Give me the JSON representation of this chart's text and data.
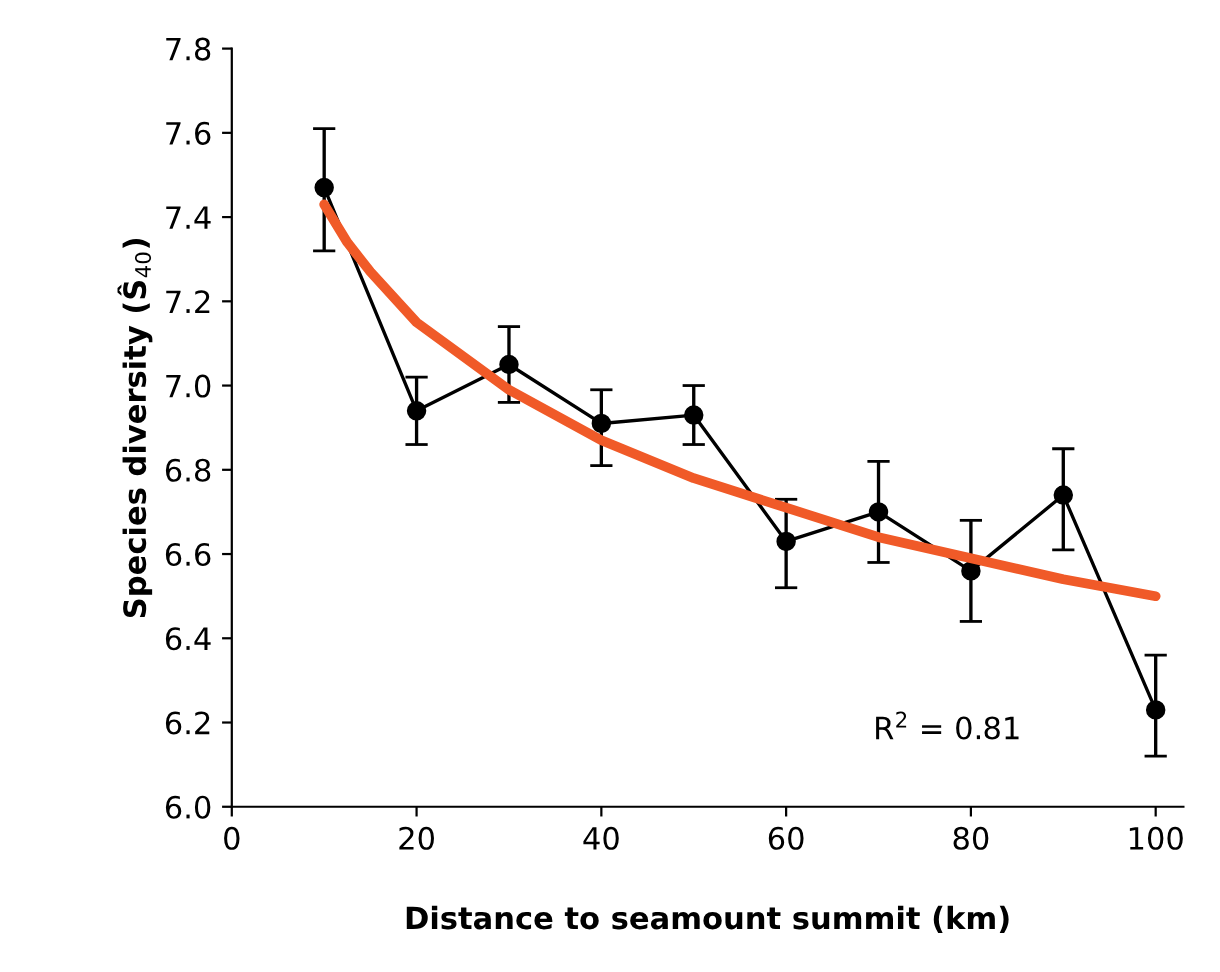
{
  "chart_data": {
    "type": "line",
    "xlabel": "Distance to seamount summit (km)",
    "ylabel": "Species diversity (Ŝ$_{40}$)",
    "xlim": [
      0,
      103
    ],
    "xticks": [
      0,
      20,
      40,
      60,
      80,
      100
    ],
    "ylim": [
      6.0,
      7.8
    ],
    "yticks": [
      {
        "value": 6.0,
        "label": "6.0"
      },
      {
        "value": 6.2,
        "label": "6.2"
      },
      {
        "value": 6.4,
        "label": "6.4"
      },
      {
        "value": 6.6,
        "label": "6.6"
      },
      {
        "value": 6.8,
        "label": "6.8"
      },
      {
        "value": 7.0,
        "label": "7.0"
      },
      {
        "value": 7.2,
        "label": "7.2"
      },
      {
        "value": 7.4,
        "label": "7.4"
      },
      {
        "value": 7.6,
        "label": "7.6"
      },
      {
        "value": 7.8,
        "label": "7.8"
      }
    ],
    "series": [
      {
        "color": "#000000",
        "marker": "circle",
        "x": [
          10,
          20,
          30,
          40,
          50,
          60,
          70,
          80,
          90,
          100
        ],
        "values": [
          7.47,
          6.94,
          7.05,
          6.91,
          6.93,
          6.63,
          6.7,
          6.56,
          6.74,
          6.23
        ],
        "errors": [
          [
            7.32,
            7.61
          ],
          [
            6.86,
            7.02
          ],
          [
            6.96,
            7.14
          ],
          [
            6.81,
            6.99
          ],
          [
            6.86,
            7.0
          ],
          [
            6.52,
            6.73
          ],
          [
            6.58,
            6.82
          ],
          [
            6.44,
            6.68
          ],
          [
            6.61,
            6.85
          ],
          [
            6.12,
            6.36
          ]
        ]
      },
      {
        "color": "#f05a28",
        "x": [
          10,
          12.5,
          15,
          20,
          30,
          40,
          50,
          60,
          70,
          80,
          90,
          100
        ],
        "values": [
          7.43,
          7.34,
          7.27,
          7.15,
          6.99,
          6.87,
          6.78,
          6.71,
          6.64,
          6.59,
          6.54,
          6.5
        ]
      }
    ],
    "annotations": [
      "R$^{2}$ = 0.81"
    ]
  }
}
